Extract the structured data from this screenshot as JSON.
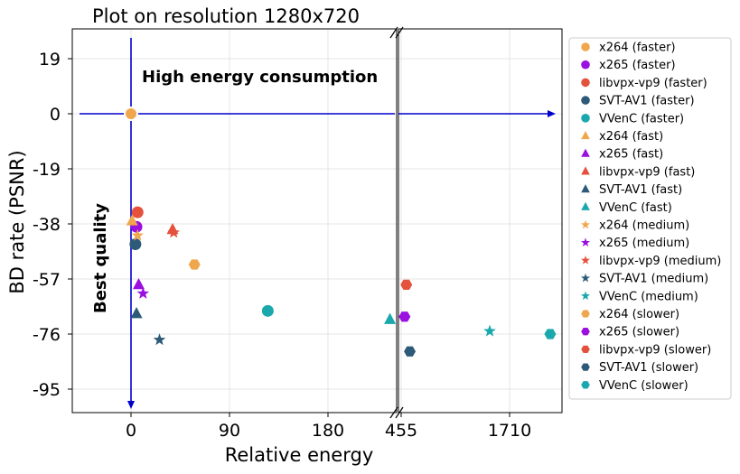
{
  "chart_data": {
    "type": "scatter",
    "title": "Plot on resolution 1280x720",
    "xlabel": "Relative energy",
    "ylabel": "BD rate (PSNR)",
    "broken_x_axis": true,
    "x_ticks_left": [
      0,
      90,
      180
    ],
    "x_ticks_right": [
      455,
      1710
    ],
    "x_tick_labels": [
      "0",
      "90",
      "180",
      "455",
      "1710"
    ],
    "y_ticks": [
      19,
      0,
      -19,
      -38,
      -57,
      -76,
      -95
    ],
    "y_tick_labels": [
      "19",
      "0",
      "-19",
      "-38",
      "-57",
      "-76",
      "-95"
    ],
    "grid": true,
    "legend_position": "right",
    "annotations": {
      "high_energy": "High energy consumption",
      "best_quality": "Best quality"
    },
    "colors": {
      "x264": "#f0a64c",
      "x265": "#9b0fe0",
      "libvpx-vp9": "#e4513d",
      "SVT-AV1": "#2c5a78",
      "VVenC": "#1aa8ad",
      "axis_arrow": "#0000cc"
    },
    "reference_point": {
      "x": 0,
      "y": 0
    },
    "series": [
      {
        "name": "x264 (faster)",
        "marker": "circle",
        "color": "#f0a64c",
        "x": 0,
        "y": 0
      },
      {
        "name": "x265 (faster)",
        "marker": "circle",
        "color": "#9b0fe0",
        "x": 5,
        "y": -39
      },
      {
        "name": "libvpx-vp9 (faster)",
        "marker": "circle",
        "color": "#e4513d",
        "x": 6,
        "y": -34
      },
      {
        "name": "SVT-AV1 (faster)",
        "marker": "circle",
        "color": "#2c5a78",
        "x": 4,
        "y": -45
      },
      {
        "name": "VVenC (faster)",
        "marker": "circle",
        "color": "#1aa8ad",
        "x": 125,
        "y": -68
      },
      {
        "name": "x264 (fast)",
        "marker": "triangle",
        "color": "#f0a64c",
        "x": 1,
        "y": -37
      },
      {
        "name": "x265 (fast)",
        "marker": "triangle",
        "color": "#9b0fe0",
        "x": 7,
        "y": -59
      },
      {
        "name": "libvpx-vp9 (fast)",
        "marker": "triangle",
        "color": "#e4513d",
        "x": 38,
        "y": -40
      },
      {
        "name": "SVT-AV1 (fast)",
        "marker": "triangle",
        "color": "#2c5a78",
        "x": 5,
        "y": -69
      },
      {
        "name": "VVenC (fast)",
        "marker": "triangle",
        "color": "#1aa8ad",
        "x": 325,
        "y": -71
      },
      {
        "name": "x264 (medium)",
        "marker": "star",
        "color": "#f0a64c",
        "x": 6,
        "y": -42
      },
      {
        "name": "x265 (medium)",
        "marker": "star",
        "color": "#9b0fe0",
        "x": 11,
        "y": -62
      },
      {
        "name": "libvpx-vp9 (medium)",
        "marker": "star",
        "color": "#e4513d",
        "x": 39,
        "y": -41
      },
      {
        "name": "SVT-AV1 (medium)",
        "marker": "star",
        "color": "#2c5a78",
        "x": 26,
        "y": -78
      },
      {
        "name": "VVenC (medium)",
        "marker": "star",
        "color": "#1aa8ad",
        "x": 1480,
        "y": -75
      },
      {
        "name": "x264 (slower)",
        "marker": "hexagon",
        "color": "#f0a64c",
        "x": 58,
        "y": -52
      },
      {
        "name": "x265 (slower)",
        "marker": "hexagon",
        "color": "#9b0fe0",
        "x": 495,
        "y": -70
      },
      {
        "name": "libvpx-vp9 (slower)",
        "marker": "hexagon",
        "color": "#e4513d",
        "x": 515,
        "y": -59
      },
      {
        "name": "SVT-AV1 (slower)",
        "marker": "hexagon",
        "color": "#2c5a78",
        "x": 555,
        "y": -82
      },
      {
        "name": "VVenC (slower)",
        "marker": "hexagon",
        "color": "#1aa8ad",
        "x": 2180,
        "y": -76
      }
    ]
  }
}
